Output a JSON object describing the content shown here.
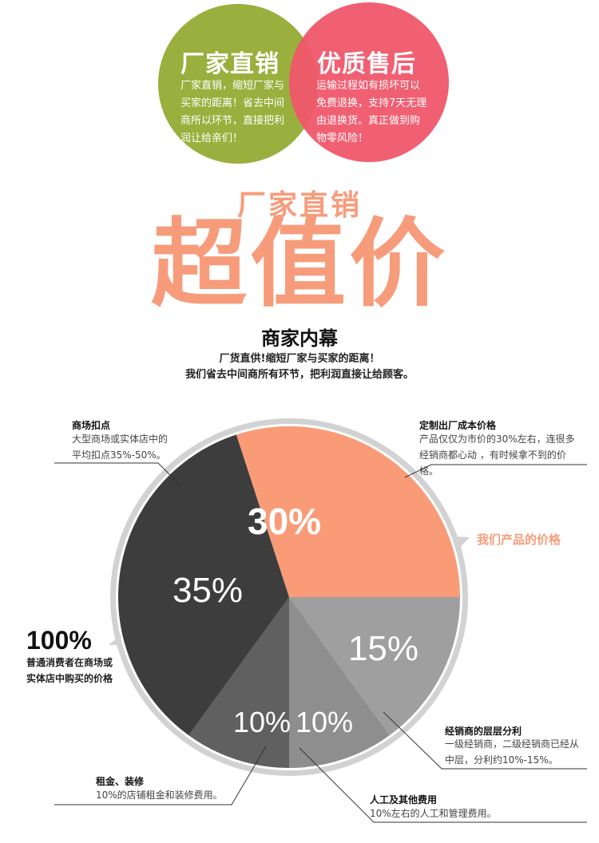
{
  "top_circles": [
    {
      "title": "厂家直销",
      "text": "厂家直销，缩短厂家与买家的距离！省去中间商所以环节，直接把利润让给亲们！",
      "color": "#9aaf3d"
    },
    {
      "title": "优质售后",
      "text": "运输过程如有损坏可以免费退换，支持7天无理由退换货。真正做到购物零风险！",
      "color": "#f0566a"
    }
  ],
  "headline": {
    "small": "厂家直销",
    "big": "超值价",
    "color": "#f79c7b"
  },
  "section": {
    "title": "商家内幕",
    "line1": "厂货直供!缩短厂家与买家的距离！",
    "line2": "我们省去中间商所有环节，把利润直接让给顾客。"
  },
  "chart_data": {
    "type": "pie",
    "total_label": "100%",
    "total_desc": "普通消费者在商场或实体店中购买的价格",
    "slices": [
      {
        "label": "30%",
        "value": 30,
        "color": "#fa9b78",
        "title": "定制出厂成本价格",
        "desc": "产品仅仅为市价的30%左右，连很多经销商都心动 ，有时候拿不到的价格。",
        "callout": "我们产品的价格"
      },
      {
        "label": "15%",
        "value": 15,
        "color": "#9f9f9f",
        "title": "经销商的层层分利",
        "desc": "一级经销商，二级经销商已经从中层，分利约10%-15%。"
      },
      {
        "label": "10%",
        "value": 10,
        "color": "#8e8e8e",
        "title": "人工及其他费用",
        "desc": "10%左右的人工和管理费用。"
      },
      {
        "label": "10%",
        "value": 10,
        "color": "#606060",
        "title": "租金、装修",
        "desc": "10%的店铺租金和装修费用。"
      },
      {
        "label": "35%",
        "value": 35,
        "color": "#3d3d3d",
        "title": "商场扣点",
        "desc": "大型商场或实体店中的平均扣点35%-50%。"
      }
    ]
  }
}
